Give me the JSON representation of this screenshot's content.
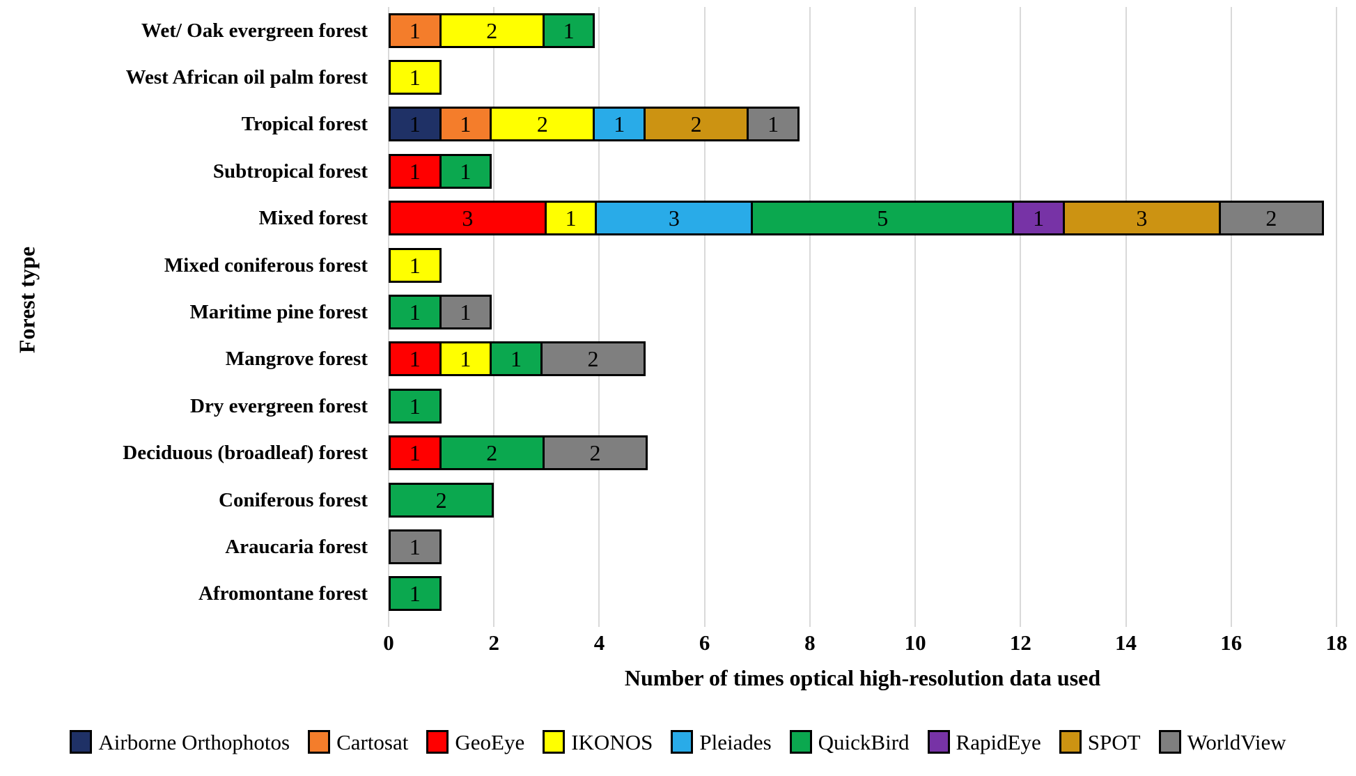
{
  "chart_data": {
    "type": "bar",
    "orientation": "horizontal-stacked",
    "xlabel": "Number of times optical high-resolution data used",
    "ylabel": "Forest type",
    "xlim": [
      0,
      18
    ],
    "xticks": [
      0,
      2,
      4,
      6,
      8,
      10,
      12,
      14,
      16,
      18
    ],
    "grid": "vertical",
    "grid_color": "#d9d9d9",
    "legend_position": "bottom",
    "categories": [
      "Wet/ Oak evergreen forest",
      "West African oil palm forest",
      "Tropical forest",
      "Subtropical forest",
      "Mixed forest",
      "Mixed coniferous forest",
      "Maritime pine forest",
      "Mangrove forest",
      "Dry evergreen forest",
      "Deciduous (broadleaf) forest",
      "Coniferous forest",
      "Araucaria forest",
      "Afromontane forest"
    ],
    "series": [
      {
        "name": "Airborne Orthophotos",
        "color": "#1f3166",
        "values": [
          0,
          0,
          1,
          0,
          0,
          0,
          0,
          0,
          0,
          0,
          0,
          0,
          0
        ]
      },
      {
        "name": "Cartosat",
        "color": "#f47d2b",
        "values": [
          1,
          0,
          1,
          0,
          0,
          0,
          0,
          0,
          0,
          0,
          0,
          0,
          0
        ]
      },
      {
        "name": "GeoEye",
        "color": "#ff0000",
        "values": [
          0,
          0,
          0,
          1,
          3,
          0,
          0,
          1,
          0,
          1,
          0,
          0,
          0
        ]
      },
      {
        "name": "IKONOS",
        "color": "#ffff00",
        "values": [
          2,
          1,
          2,
          0,
          1,
          1,
          0,
          1,
          0,
          0,
          0,
          0,
          0
        ]
      },
      {
        "name": "Pleiades",
        "color": "#29abe8",
        "values": [
          0,
          0,
          1,
          0,
          3,
          0,
          0,
          0,
          0,
          0,
          0,
          0,
          0
        ]
      },
      {
        "name": "QuickBird",
        "color": "#0ba84f",
        "values": [
          1,
          0,
          0,
          1,
          5,
          0,
          1,
          1,
          1,
          2,
          2,
          0,
          1
        ]
      },
      {
        "name": "RapidEye",
        "color": "#7733a6",
        "values": [
          0,
          0,
          0,
          0,
          1,
          0,
          0,
          0,
          0,
          0,
          0,
          0,
          0
        ]
      },
      {
        "name": "SPOT",
        "color": "#cc9312",
        "values": [
          0,
          0,
          2,
          0,
          3,
          0,
          0,
          0,
          0,
          0,
          0,
          0,
          0
        ]
      },
      {
        "name": "WorldView",
        "color": "#7f7f7f",
        "values": [
          0,
          0,
          1,
          0,
          2,
          0,
          1,
          2,
          0,
          2,
          0,
          1,
          0
        ]
      }
    ]
  }
}
